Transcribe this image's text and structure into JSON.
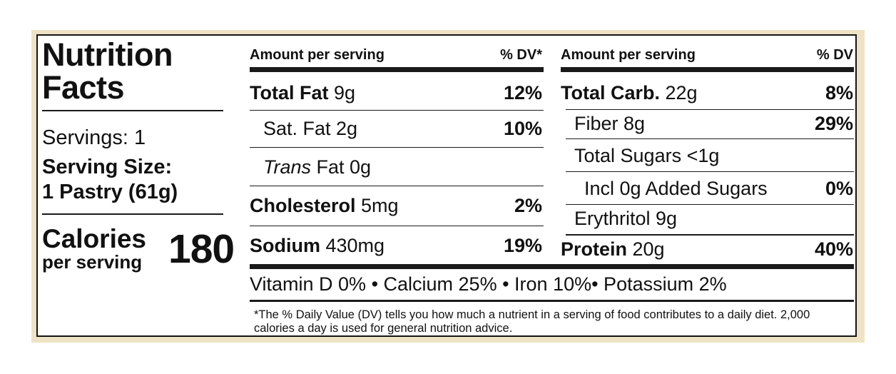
{
  "left": {
    "title_line1": "Nutrition",
    "title_line2": "Facts",
    "servings": "Servings: 1",
    "serving_size_label": "Serving Size:",
    "serving_size_value": "1 Pastry (61g)",
    "calories_label": "Calories",
    "calories_sub": "per serving",
    "calories_value": "180"
  },
  "table1": {
    "header_amount": "Amount per serving",
    "header_dv": "% DV*",
    "rows": [
      {
        "name": "Total Fat",
        "amount": " 9g",
        "dv": "12%"
      },
      {
        "name": "Sat. Fat 2g",
        "dv": "10%"
      },
      {
        "name_italic": "Trans",
        "name": " Fat 0g"
      },
      {
        "name": "Cholesterol",
        "amount": " 5mg",
        "dv": "2%"
      },
      {
        "name": "Sodium",
        "amount": " 430mg",
        "dv": "19%"
      }
    ]
  },
  "table2": {
    "header_amount": "Amount per serving",
    "header_dv": "% DV",
    "rows": [
      {
        "name": "Total Carb.",
        "amount": " 22g",
        "dv": "8%"
      },
      {
        "name": "Fiber 8g",
        "dv": "29%"
      },
      {
        "name": "Total Sugars <1g"
      },
      {
        "name": "Incl 0g Added Sugars",
        "dv": "0%"
      },
      {
        "name": "Erythritol 9g"
      },
      {
        "name": "Protein",
        "amount": " 20g",
        "dv": "40%"
      }
    ]
  },
  "vitamins": "Vitamin D 0%  • Calcium 25%  • Iron 10%• Potassium 2%",
  "footnote": "*The % Daily Value (DV) tells you how much a nutrient in a serving of food contributes to a daily diet. 2,000 calories a day is used for general nutrition advice."
}
